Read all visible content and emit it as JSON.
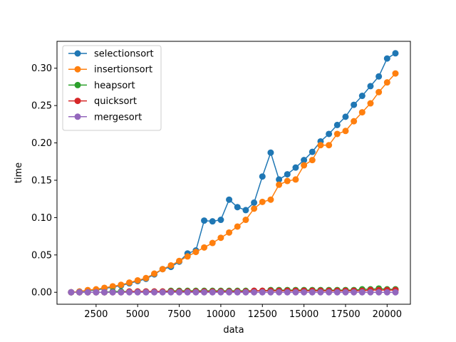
{
  "chart_data": {
    "type": "line",
    "title": "",
    "xlabel": "data",
    "ylabel": "time",
    "xlim": [
      150,
      21400
    ],
    "ylim": [
      -0.016,
      0.336
    ],
    "xticks": [
      2500,
      5000,
      7500,
      10000,
      12500,
      15000,
      17500,
      20000
    ],
    "yticks": [
      0.0,
      0.05,
      0.1,
      0.15,
      0.2,
      0.25,
      0.3
    ],
    "xtick_labels": [
      "2500",
      "5000",
      "7500",
      "10000",
      "12500",
      "15000",
      "17500",
      "20000"
    ],
    "ytick_labels": [
      "0.00",
      "0.05",
      "0.10",
      "0.15",
      "0.20",
      "0.25",
      "0.30"
    ],
    "grid": false,
    "legend_placement": "upper-left",
    "x": [
      1000,
      1500,
      2000,
      2500,
      3000,
      3500,
      4000,
      4500,
      5000,
      5500,
      6000,
      6500,
      7000,
      7500,
      8000,
      8500,
      9000,
      9500,
      10000,
      10500,
      11000,
      11500,
      12000,
      12500,
      13000,
      13500,
      14000,
      14500,
      15000,
      15500,
      16000,
      16500,
      17000,
      17500,
      18000,
      18500,
      19000,
      19500,
      20000,
      20500
    ],
    "series": [
      {
        "name": "selectionsort",
        "color": "#1f77b4",
        "values": [
          0.0,
          0.001,
          0.002,
          0.003,
          0.005,
          0.007,
          0.009,
          0.012,
          0.015,
          0.018,
          0.024,
          0.031,
          0.034,
          0.041,
          0.052,
          0.056,
          0.096,
          0.095,
          0.097,
          0.124,
          0.114,
          0.11,
          0.12,
          0.155,
          0.187,
          0.151,
          0.158,
          0.167,
          0.177,
          0.188,
          0.202,
          0.212,
          0.224,
          0.235,
          0.251,
          0.263,
          0.276,
          0.289,
          0.313,
          0.32
        ]
      },
      {
        "name": "insertionsort",
        "color": "#ff7f0e",
        "values": [
          0.0,
          0.001,
          0.003,
          0.004,
          0.006,
          0.008,
          0.01,
          0.013,
          0.016,
          0.019,
          0.025,
          0.031,
          0.036,
          0.042,
          0.048,
          0.054,
          0.06,
          0.066,
          0.073,
          0.08,
          0.088,
          0.097,
          0.112,
          0.121,
          0.124,
          0.144,
          0.149,
          0.151,
          0.17,
          0.177,
          0.197,
          0.197,
          0.212,
          0.216,
          0.229,
          0.241,
          0.253,
          0.268,
          0.281,
          0.293
        ]
      },
      {
        "name": "heapsort",
        "color": "#2ca02c",
        "values": [
          0.0,
          0.0,
          0.0,
          0.0,
          0.0,
          0.001,
          0.001,
          0.001,
          0.001,
          0.001,
          0.001,
          0.001,
          0.002,
          0.002,
          0.002,
          0.002,
          0.002,
          0.002,
          0.002,
          0.002,
          0.002,
          0.002,
          0.002,
          0.002,
          0.003,
          0.003,
          0.003,
          0.003,
          0.003,
          0.003,
          0.003,
          0.003,
          0.003,
          0.003,
          0.003,
          0.004,
          0.004,
          0.005,
          0.004,
          0.004
        ]
      },
      {
        "name": "quicksort",
        "color": "#d62728",
        "values": [
          0.0,
          0.0,
          0.0,
          0.0,
          0.0,
          0.0,
          0.0,
          0.001,
          0.001,
          0.001,
          0.001,
          0.001,
          0.001,
          0.001,
          0.001,
          0.001,
          0.001,
          0.001,
          0.001,
          0.001,
          0.001,
          0.001,
          0.002,
          0.002,
          0.002,
          0.002,
          0.002,
          0.002,
          0.002,
          0.002,
          0.002,
          0.002,
          0.002,
          0.002,
          0.002,
          0.002,
          0.003,
          0.003,
          0.003,
          0.003
        ]
      },
      {
        "name": "mergesort",
        "color": "#9467bd",
        "values": [
          0.0,
          0.0,
          0.0,
          0.0,
          0.0,
          0.0,
          0.0,
          0.0,
          0.0,
          0.0,
          0.0,
          0.0,
          0.0,
          0.0,
          0.0,
          0.0,
          0.0,
          0.0,
          0.0,
          0.0,
          0.0,
          0.0,
          0.0,
          0.0,
          0.0,
          0.0,
          0.0,
          0.0,
          0.0,
          0.0,
          0.0,
          0.0,
          0.0,
          0.0,
          0.0,
          0.0,
          0.0,
          0.0,
          0.0,
          0.0
        ]
      }
    ]
  }
}
